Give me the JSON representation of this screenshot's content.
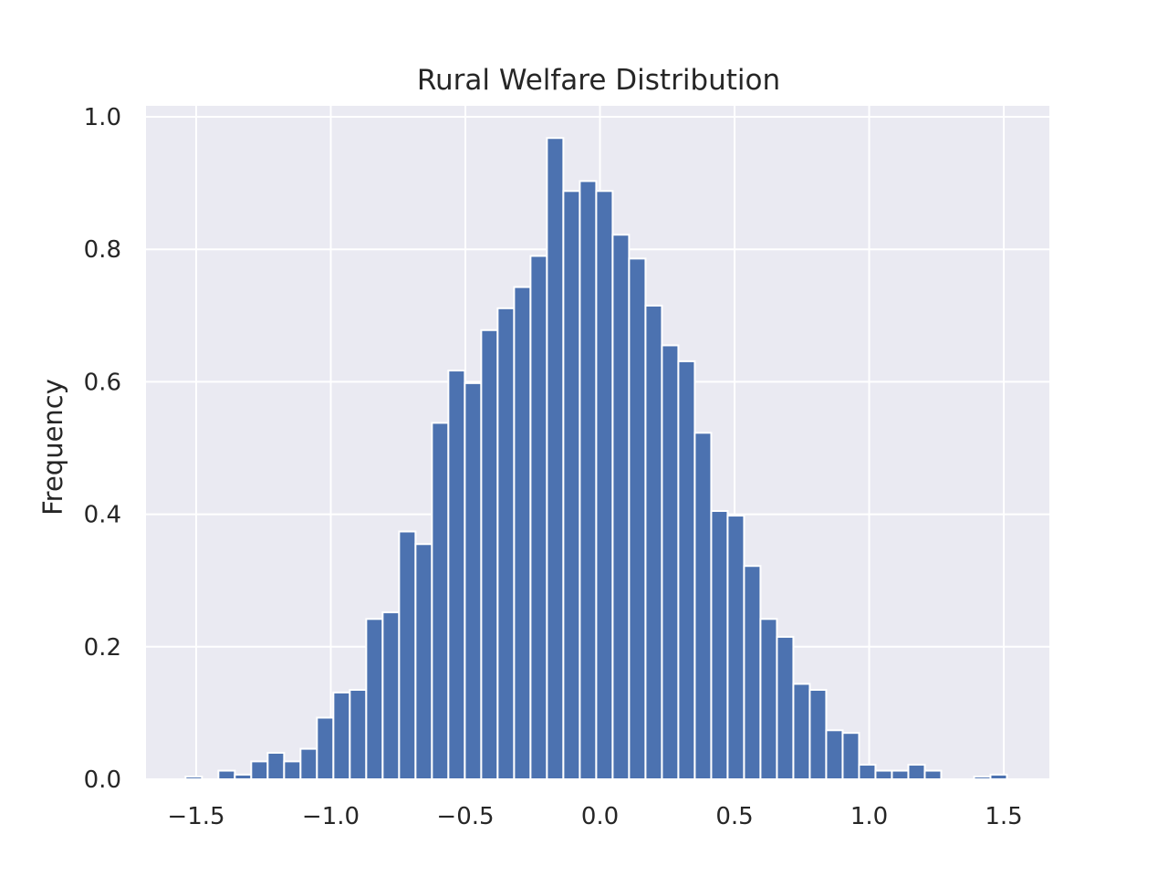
{
  "colors": {
    "plot_background": "#EAEAF2",
    "grid": "#FFFFFF",
    "bar_fill": "#4C72B0",
    "bar_edge": "#FFFFFF",
    "text": "#262626"
  },
  "chart_data": {
    "type": "bar",
    "title": "Rural Welfare Distribution",
    "xlabel": "",
    "ylabel": "Frequency",
    "xlim": [
      -1.67,
      1.67
    ],
    "ylim": [
      0,
      1.02
    ],
    "xticks": [
      -1.5,
      -1.0,
      -0.5,
      0.0,
      0.5,
      1.0,
      1.5
    ],
    "xtick_labels": [
      "−1.5",
      "−1.0",
      "−0.5",
      "0.0",
      "0.5",
      "1.0",
      "1.5"
    ],
    "yticks": [
      0.0,
      0.2,
      0.4,
      0.6,
      0.8,
      1.0
    ],
    "ytick_labels": [
      "0.0",
      "0.2",
      "0.4",
      "0.6",
      "0.8",
      "1.0"
    ],
    "grid": true,
    "bin_edges": [
      -1.5396,
      -1.4785,
      -1.4175,
      -1.3565,
      -1.2955,
      -1.2344,
      -1.1734,
      -1.1124,
      -1.0514,
      -0.9903,
      -0.9293,
      -0.8683,
      -0.8073,
      -0.7462,
      -0.6852,
      -0.6242,
      -0.5632,
      -0.5021,
      -0.4411,
      -0.3801,
      -0.319,
      -0.258,
      -0.197,
      -0.136,
      -0.0749,
      -0.0139,
      0.0471,
      0.1081,
      0.1692,
      0.2302,
      0.2912,
      0.3522,
      0.4133,
      0.4743,
      0.5353,
      0.5963,
      0.6574,
      0.7184,
      0.7794,
      0.8404,
      0.9015,
      0.9625,
      1.0235,
      1.0845,
      1.1456,
      1.2066,
      1.2676,
      1.3286,
      1.3897,
      1.4507,
      1.5117
    ],
    "values": [
      0.004,
      0.0,
      0.013,
      0.007,
      0.027,
      0.04,
      0.027,
      0.046,
      0.093,
      0.131,
      0.135,
      0.242,
      0.252,
      0.374,
      0.355,
      0.538,
      0.617,
      0.598,
      0.678,
      0.711,
      0.743,
      0.79,
      0.968,
      0.888,
      0.903,
      0.888,
      0.822,
      0.786,
      0.715,
      0.655,
      0.631,
      0.523,
      0.405,
      0.398,
      0.322,
      0.242,
      0.215,
      0.144,
      0.135,
      0.074,
      0.07,
      0.022,
      0.013,
      0.013,
      0.022,
      0.013,
      0.0,
      0.0,
      0.004,
      0.007
    ]
  }
}
